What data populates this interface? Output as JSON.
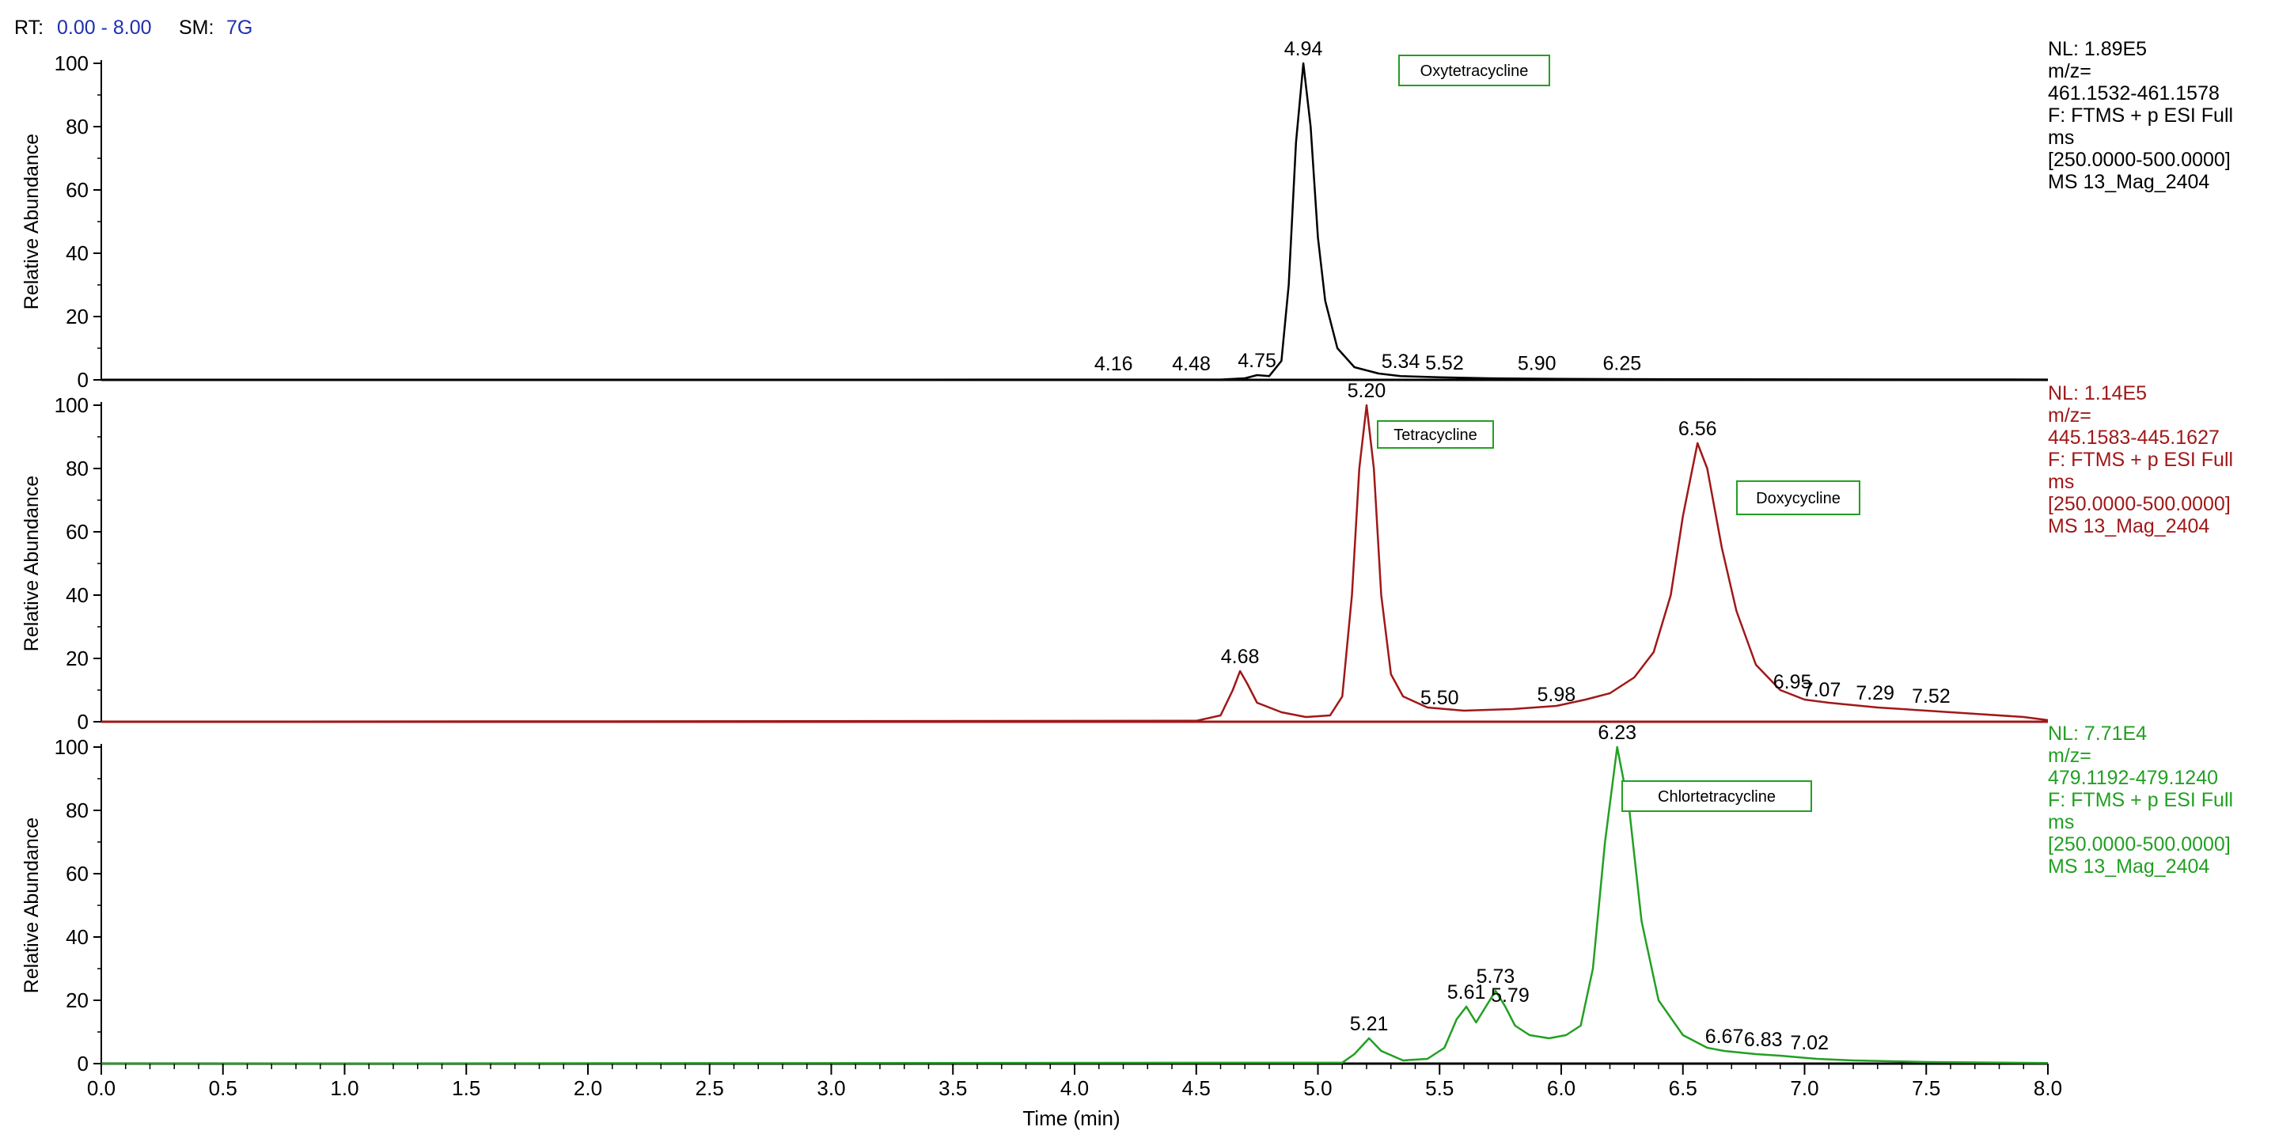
{
  "header": {
    "rt_label": "RT:",
    "rt_value": "0.00 - 8.00",
    "sm_label": "SM:",
    "sm_value": "7G"
  },
  "chart_data": {
    "type": "line",
    "xlabel": "Time (min)",
    "xlim": [
      0,
      8
    ],
    "x_ticks": [
      "0.0",
      "0.5",
      "1.0",
      "1.5",
      "2.0",
      "2.5",
      "3.0",
      "3.5",
      "4.0",
      "4.5",
      "5.0",
      "5.5",
      "6.0",
      "6.5",
      "7.0",
      "7.5",
      "8.0"
    ],
    "panels": [
      {
        "color": "#000000",
        "ylabel": "Relative Abundance",
        "ylim": [
          0,
          100
        ],
        "y_ticks": [
          "0",
          "20",
          "40",
          "60",
          "80",
          "100"
        ],
        "compound": "Oxytetracycline",
        "info": [
          "NL: 1.89E5",
          "m/z=",
          "461.1532-461.1578",
          "F: FTMS + p ESI Full",
          "ms",
          "[250.0000-500.0000]",
          " MS 13_Mag_2404"
        ],
        "peak_labels": [
          {
            "label": "4.94",
            "x": 4.94,
            "y": 100
          },
          {
            "label": "4.16",
            "x": 4.16,
            "y": 0.5
          },
          {
            "label": "4.48",
            "x": 4.48,
            "y": 0.5
          },
          {
            "label": "4.75",
            "x": 4.75,
            "y": 1.5
          },
          {
            "label": "5.34",
            "x": 5.34,
            "y": 1.2
          },
          {
            "label": "5.52",
            "x": 5.52,
            "y": 0.8
          },
          {
            "label": "5.90",
            "x": 5.9,
            "y": 0.6
          },
          {
            "label": "6.25",
            "x": 6.25,
            "y": 0.6
          }
        ],
        "points": [
          [
            0,
            0
          ],
          [
            4.6,
            0.1
          ],
          [
            4.7,
            0.5
          ],
          [
            4.75,
            1.5
          ],
          [
            4.8,
            1.2
          ],
          [
            4.85,
            6
          ],
          [
            4.88,
            30
          ],
          [
            4.91,
            75
          ],
          [
            4.94,
            100
          ],
          [
            4.97,
            80
          ],
          [
            5.0,
            45
          ],
          [
            5.03,
            25
          ],
          [
            5.08,
            10
          ],
          [
            5.15,
            4
          ],
          [
            5.25,
            2
          ],
          [
            5.34,
            1.2
          ],
          [
            5.5,
            0.8
          ],
          [
            5.7,
            0.5
          ],
          [
            6.0,
            0.3
          ],
          [
            6.5,
            0.2
          ],
          [
            8.0,
            0.1
          ]
        ]
      },
      {
        "color": "#a01818",
        "ylabel": "Relative Abundance",
        "ylim": [
          0,
          100
        ],
        "y_ticks": [
          "0",
          "20",
          "40",
          "60",
          "80",
          "100"
        ],
        "compound": [
          "Tetracycline",
          "Doxycycline"
        ],
        "info": [
          "NL: 1.14E5",
          "m/z=",
          "445.1583-445.1627",
          "F: FTMS + p ESI Full",
          "ms",
          "[250.0000-500.0000]",
          " MS 13_Mag_2404"
        ],
        "peak_labels": [
          {
            "label": "5.20",
            "x": 5.2,
            "y": 100
          },
          {
            "label": "6.56",
            "x": 6.56,
            "y": 88
          },
          {
            "label": "4.68",
            "x": 4.68,
            "y": 16
          },
          {
            "label": "5.50",
            "x": 5.5,
            "y": 3
          },
          {
            "label": "5.98",
            "x": 5.98,
            "y": 4
          },
          {
            "label": "6.95",
            "x": 6.95,
            "y": 8
          },
          {
            "label": "7.07",
            "x": 7.07,
            "y": 5.5
          },
          {
            "label": "7.29",
            "x": 7.29,
            "y": 4.5
          },
          {
            "label": "7.52",
            "x": 7.52,
            "y": 3.5
          }
        ],
        "points": [
          [
            0,
            0
          ],
          [
            4.5,
            0.3
          ],
          [
            4.6,
            2
          ],
          [
            4.65,
            10
          ],
          [
            4.68,
            16
          ],
          [
            4.71,
            12
          ],
          [
            4.75,
            6
          ],
          [
            4.85,
            3
          ],
          [
            4.95,
            1.5
          ],
          [
            5.05,
            2
          ],
          [
            5.1,
            8
          ],
          [
            5.14,
            40
          ],
          [
            5.17,
            80
          ],
          [
            5.2,
            100
          ],
          [
            5.23,
            80
          ],
          [
            5.26,
            40
          ],
          [
            5.3,
            15
          ],
          [
            5.35,
            8
          ],
          [
            5.45,
            4.5
          ],
          [
            5.6,
            3.5
          ],
          [
            5.8,
            4
          ],
          [
            5.98,
            5
          ],
          [
            6.1,
            7
          ],
          [
            6.2,
            9
          ],
          [
            6.3,
            14
          ],
          [
            6.38,
            22
          ],
          [
            6.45,
            40
          ],
          [
            6.5,
            65
          ],
          [
            6.56,
            88
          ],
          [
            6.6,
            80
          ],
          [
            6.66,
            55
          ],
          [
            6.72,
            35
          ],
          [
            6.8,
            18
          ],
          [
            6.9,
            10
          ],
          [
            7.0,
            7
          ],
          [
            7.1,
            6
          ],
          [
            7.3,
            4.5
          ],
          [
            7.5,
            3.5
          ],
          [
            7.7,
            2.5
          ],
          [
            7.9,
            1.5
          ],
          [
            8.0,
            0.5
          ]
        ]
      },
      {
        "color": "#22a022",
        "ylabel": "Relative Abundance",
        "ylim": [
          0,
          100
        ],
        "y_ticks": [
          "0",
          "20",
          "40",
          "60",
          "80",
          "100"
        ],
        "compound": "Chlortetracycline",
        "info": [
          "NL: 7.71E4",
          "m/z=",
          "479.1192-479.1240",
          "F: FTMS + p ESI Full",
          "ms",
          "[250.0000-500.0000]",
          " MS 13_Mag_2404"
        ],
        "peak_labels": [
          {
            "label": "6.23",
            "x": 6.23,
            "y": 100
          },
          {
            "label": "5.21",
            "x": 5.21,
            "y": 8
          },
          {
            "label": "5.61",
            "x": 5.61,
            "y": 18
          },
          {
            "label": "5.73",
            "x": 5.73,
            "y": 23
          },
          {
            "label": "5.79",
            "x": 5.79,
            "y": 17
          },
          {
            "label": "6.67",
            "x": 6.67,
            "y": 4
          },
          {
            "label": "6.83",
            "x": 6.83,
            "y": 3
          },
          {
            "label": "7.02",
            "x": 7.02,
            "y": 2
          }
        ],
        "points": [
          [
            0,
            0
          ],
          [
            5.1,
            0.3
          ],
          [
            5.15,
            3
          ],
          [
            5.21,
            8
          ],
          [
            5.26,
            4
          ],
          [
            5.35,
            1
          ],
          [
            5.45,
            1.5
          ],
          [
            5.52,
            5
          ],
          [
            5.57,
            14
          ],
          [
            5.61,
            18
          ],
          [
            5.65,
            13
          ],
          [
            5.69,
            18
          ],
          [
            5.73,
            23
          ],
          [
            5.77,
            18
          ],
          [
            5.81,
            12
          ],
          [
            5.87,
            9
          ],
          [
            5.95,
            8
          ],
          [
            6.02,
            9
          ],
          [
            6.08,
            12
          ],
          [
            6.13,
            30
          ],
          [
            6.18,
            70
          ],
          [
            6.23,
            100
          ],
          [
            6.28,
            80
          ],
          [
            6.33,
            45
          ],
          [
            6.4,
            20
          ],
          [
            6.5,
            9
          ],
          [
            6.6,
            5
          ],
          [
            6.67,
            4
          ],
          [
            6.8,
            3
          ],
          [
            6.9,
            2.5
          ],
          [
            7.05,
            1.5
          ],
          [
            7.2,
            1
          ],
          [
            7.5,
            0.5
          ],
          [
            8.0,
            0.2
          ]
        ]
      }
    ]
  }
}
